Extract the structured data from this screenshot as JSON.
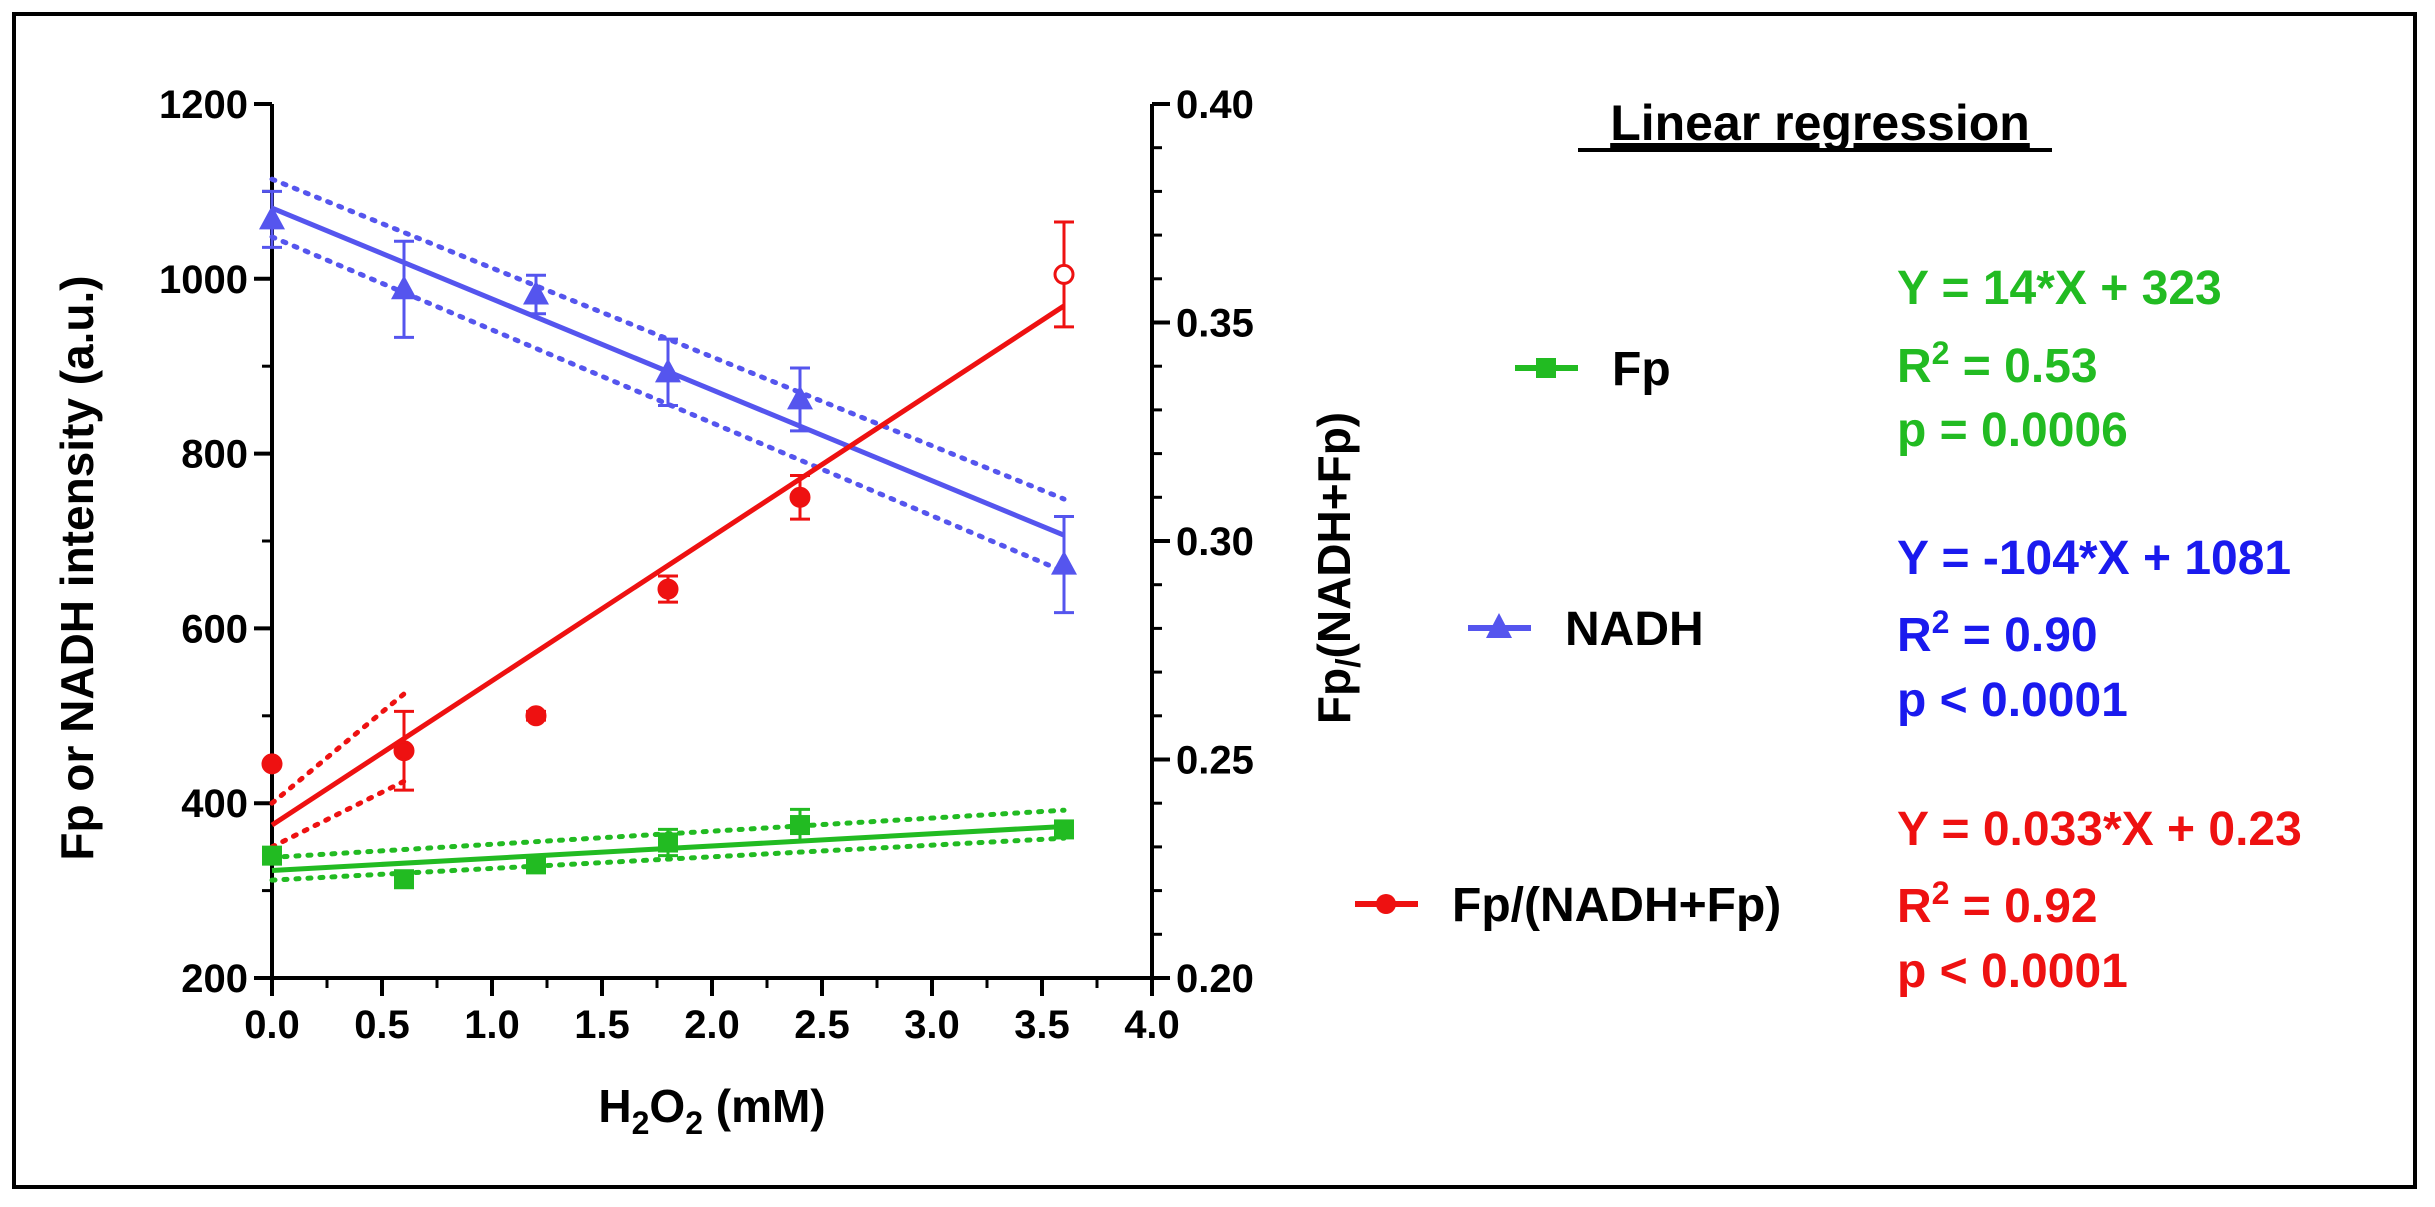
{
  "chart_data": {
    "type": "scatter",
    "x_axis": {
      "label_main": "H",
      "label_sub1": "2",
      "label_mid": "O",
      "label_sub2": "2",
      "label_tail": " (mM)",
      "range": [
        0.0,
        4.0
      ],
      "ticks": [
        "0.0",
        "0.5",
        "1.0",
        "1.5",
        "2.0",
        "2.5",
        "3.0",
        "3.5",
        "4.0"
      ]
    },
    "y_left": {
      "label": "Fp or NADH intensity (a.u.)",
      "range": [
        200,
        1200
      ],
      "ticks": [
        "200",
        "400",
        "600",
        "800",
        "1000",
        "1200"
      ]
    },
    "y_right": {
      "label_main": "Fp",
      "label_sub": "/",
      "label_tail": "(NADH+Fp)",
      "range": [
        0.2,
        0.4
      ],
      "ticks": [
        "0.20",
        "0.25",
        "0.30",
        "0.35",
        "0.40"
      ]
    },
    "series": [
      {
        "name": "Fp",
        "color": "#22bb22",
        "marker": "square",
        "axis": "left",
        "x": [
          0.0,
          0.6,
          1.2,
          1.8,
          2.4,
          3.6
        ],
        "y": [
          340,
          313,
          330,
          355,
          375,
          370
        ],
        "err": [
          8,
          8,
          8,
          15,
          18,
          8
        ],
        "fit": {
          "slope": 14,
          "intercept": 323
        },
        "band": [
          [
            0.0,
            312,
            338
          ],
          [
            3.6,
            360,
            392
          ]
        ]
      },
      {
        "name": "NADH",
        "color": "#5555ee",
        "marker": "triangle",
        "axis": "left",
        "x": [
          0.0,
          0.6,
          1.2,
          1.8,
          2.4,
          3.6
        ],
        "y": [
          1068,
          988,
          982,
          893,
          862,
          673
        ],
        "err": [
          32,
          55,
          22,
          38,
          36,
          55
        ],
        "fit": {
          "slope": -104,
          "intercept": 1081
        },
        "band": [
          [
            0.0,
            1048,
            1114
          ],
          [
            3.6,
            665,
            748
          ]
        ]
      },
      {
        "name": "Fp/(NADH+Fp)",
        "color": "#ee1111",
        "marker": "circle",
        "axis": "right",
        "x": [
          0.0,
          0.6,
          1.2,
          1.8,
          2.4,
          3.6
        ],
        "y": [
          0.249,
          0.252,
          0.26,
          0.289,
          0.31,
          0.361
        ],
        "err": [
          0.0,
          0.009,
          0.001,
          0.003,
          0.005,
          0.012
        ],
        "hollow_last": true,
        "fit": {
          "slope": 0.033,
          "intercept": 0.235
        },
        "band": [
          [
            0.0,
            0.23,
            0.24
          ],
          [
            0.6,
            0.245,
            0.265
          ]
        ]
      }
    ]
  },
  "regression_panel": {
    "title": "Linear regression",
    "entries": [
      {
        "legend_label": "Fp",
        "color": "#22bb22",
        "equation": "Y = 14*X + 323",
        "r2_prefix": "R",
        "r2_sup": "2",
        "r2_value": " = 0.53",
        "p_text": "p = 0.0006"
      },
      {
        "legend_label": "NADH",
        "color": "#1a1aee",
        "equation": "Y = -104*X + 1081",
        "r2_prefix": "R",
        "r2_sup": "2",
        "r2_value": " = 0.90",
        "p_text": "p < 0.0001"
      },
      {
        "legend_label": "Fp/(NADH+Fp)",
        "color": "#ee1111",
        "equation": "Y = 0.033*X + 0.23",
        "r2_prefix": "R",
        "r2_sup": "2",
        "r2_value": " = 0.92",
        "p_text": "p < 0.0001"
      }
    ]
  }
}
